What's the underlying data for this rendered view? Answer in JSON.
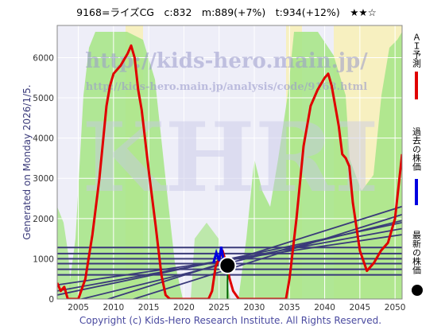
{
  "chart_data": {
    "type": "line",
    "title": "9168=ライズCG　c:832　m:889(+7%)　t:934(+12%)　★★☆",
    "side_note": "Generated on Monday 2026/1/5.",
    "footer": "Copyright (c) Kids-Hero Research Institute. All Rights Reserved.",
    "watermark": {
      "url1": "http://kids-hero.main.jp/",
      "url2": "http://kids-hero.main.jp/analysis/code/9168.html",
      "logo": "KHRI"
    },
    "legend": [
      {
        "label": "ＡＩ予測",
        "color": "#e00000",
        "marker": "line"
      },
      {
        "label": "過去の株価",
        "color": "#0000e0",
        "marker": "line"
      },
      {
        "label": "最新の株価",
        "color": "#000000",
        "marker": "dot"
      }
    ],
    "xlim": [
      2002,
      2051
    ],
    "ylim": [
      0,
      6800
    ],
    "x_ticks": [
      2005,
      2010,
      2015,
      2020,
      2025,
      2030,
      2035,
      2040,
      2045,
      2050
    ],
    "y_ticks": [
      0,
      1000,
      2000,
      3000,
      4000,
      5000,
      6000
    ],
    "latest": {
      "x": 2026.2,
      "y": 832
    },
    "horizontal_levels": [
      600,
      740,
      880,
      1000,
      1130,
      1280
    ],
    "trend_lines": [
      {
        "x": [
          2002,
          2051
        ],
        "y": [
          -400,
          2300
        ]
      },
      {
        "x": [
          2002,
          2051
        ],
        "y": [
          -600,
          2100
        ]
      },
      {
        "x": [
          2002,
          2051
        ],
        "y": [
          -150,
          1950
        ]
      },
      {
        "x": [
          2002,
          2051
        ],
        "y": [
          100,
          1900
        ]
      },
      {
        "x": [
          2002,
          2051
        ],
        "y": [
          200,
          1750
        ]
      },
      {
        "x": [
          2002,
          2051
        ],
        "y": [
          350,
          1600
        ]
      }
    ],
    "past_price": {
      "x": [
        2024.2,
        2024.6,
        2025.0,
        2025.3,
        2025.6,
        2025.9,
        2026.2
      ],
      "y": [
        900,
        1150,
        950,
        1300,
        1000,
        880,
        832
      ]
    },
    "ai_prediction": {
      "x": [
        2002,
        2002.5,
        2003,
        2003.5,
        2004,
        2004.5,
        2005,
        2006,
        2007,
        2008,
        2009,
        2009.5,
        2010,
        2011,
        2012,
        2012.5,
        2013,
        2013.5,
        2014,
        2015,
        2016,
        2016.8,
        2017.4,
        2018,
        2023.5,
        2024,
        2024.5,
        2025,
        2025.5,
        2026,
        2026.5,
        2027,
        2027.8,
        2034.5,
        2035,
        2036,
        2037,
        2038,
        2039,
        2040,
        2040.5,
        2041,
        2042,
        2042.5,
        2043,
        2043.5,
        2044,
        2045,
        2046,
        2047,
        2048,
        2049,
        2050,
        2051
      ],
      "y": [
        400,
        200,
        300,
        0,
        0,
        0,
        0,
        500,
        1600,
        3000,
        4800,
        5300,
        5600,
        5800,
        6100,
        6300,
        6000,
        5200,
        4700,
        3200,
        1800,
        600,
        100,
        0,
        0,
        200,
        800,
        1000,
        1200,
        900,
        500,
        200,
        0,
        0,
        500,
        2000,
        3800,
        4800,
        5200,
        5500,
        5600,
        5300,
        4300,
        3600,
        3500,
        3300,
        2400,
        1200,
        700,
        900,
        1200,
        1400,
        2000,
        3600
      ]
    }
  }
}
